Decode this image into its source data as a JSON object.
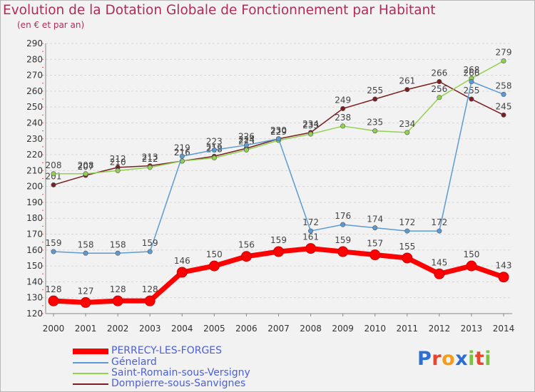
{
  "title": "Evolution de la Dotation Globale de Fonctionnement par Habitant",
  "subtitle": "(en € et par an)",
  "logo": {
    "letters": [
      "P",
      "r",
      "o",
      "x",
      "i",
      "t",
      "i"
    ],
    "colors": [
      "#2c6fd1",
      "#e8452c",
      "#f59c1a",
      "#2c6fd1",
      "#7cc242",
      "#e8452c",
      "#7cc242"
    ]
  },
  "chart_data": {
    "type": "line",
    "x": [
      "2000",
      "2001",
      "2002",
      "2003",
      "2004",
      "2005",
      "2006",
      "2007",
      "2008",
      "2009",
      "2010",
      "2011",
      "2012",
      "2013",
      "2014"
    ],
    "ylim": [
      120,
      290
    ],
    "yticks": [
      120,
      130,
      140,
      150,
      160,
      170,
      180,
      190,
      200,
      210,
      220,
      230,
      240,
      250,
      260,
      270,
      280,
      290
    ],
    "grid": "horizontal dashed",
    "legend": "bottom-left",
    "series": [
      {
        "name": "PERRECY-LES-FORGES",
        "color": "#ff0000",
        "values": [
          128,
          127,
          128,
          128,
          146,
          150,
          156,
          159,
          161,
          159,
          157,
          155,
          145,
          150,
          143
        ]
      },
      {
        "name": "Génelard",
        "color": "#5b9bd5",
        "values": [
          159,
          158,
          158,
          159,
          219,
          223,
          226,
          230,
          172,
          176,
          174,
          172,
          172,
          266,
          258
        ]
      },
      {
        "name": "Saint-Romain-sous-Versigny",
        "color": "#92d050",
        "values": [
          208,
          208,
          210,
          212,
          216,
          218,
          223,
          229,
          233,
          238,
          235,
          234,
          256,
          268,
          279
        ]
      },
      {
        "name": "Dompierre-sous-Sanvignes",
        "color": "#7b2020",
        "values": [
          201,
          207,
          212,
          213,
          216,
          219,
          224,
          230,
          234,
          249,
          255,
          261,
          266,
          255,
          245
        ]
      }
    ]
  }
}
